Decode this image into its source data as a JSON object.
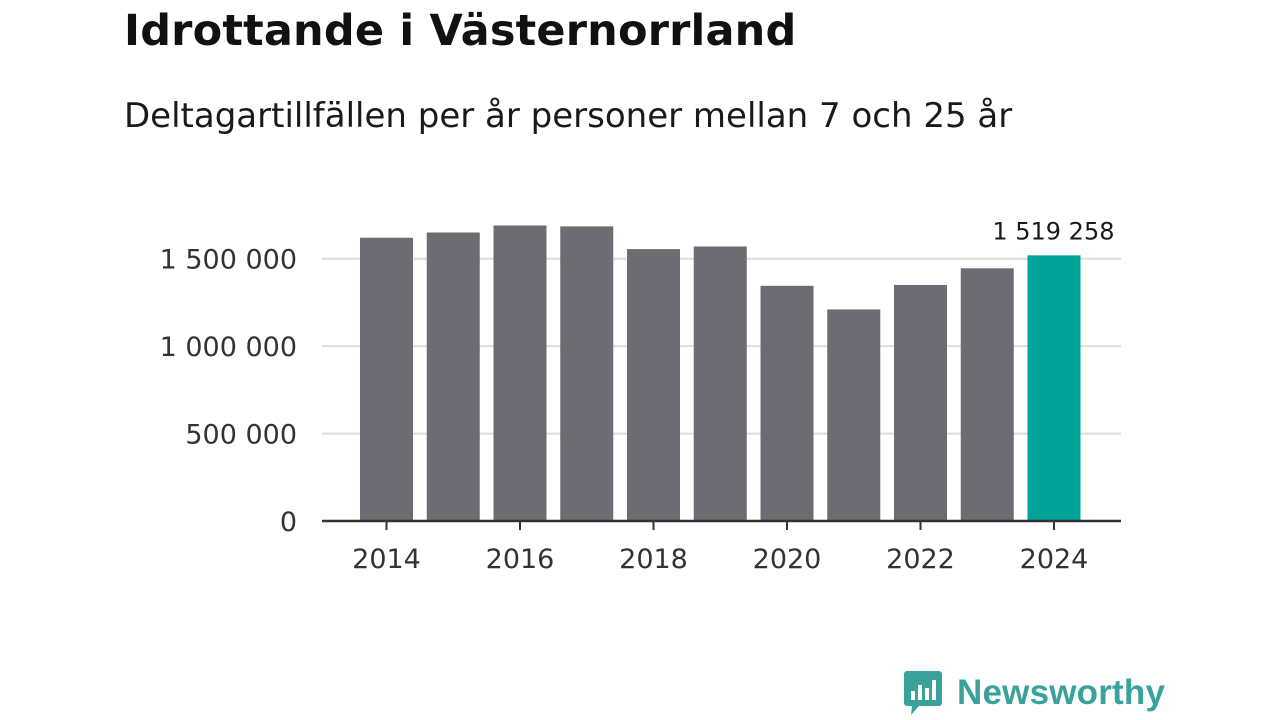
{
  "title": "Idrottande i Västernorrland",
  "subtitle": "Deltagartillfällen per år personer mellan 7 och 25 år",
  "brand": {
    "name": "Newsworthy",
    "icon": "newsworthy-logo-icon",
    "color": "#3aa29a"
  },
  "chart_data": {
    "type": "bar",
    "categories": [
      "2014",
      "2015",
      "2016",
      "2017",
      "2018",
      "2019",
      "2020",
      "2021",
      "2022",
      "2023",
      "2024"
    ],
    "values": [
      1620000,
      1650000,
      1690000,
      1685000,
      1555000,
      1570000,
      1345000,
      1210000,
      1350000,
      1445000,
      1519258
    ],
    "highlight_index": 10,
    "highlight_label": "1 519 258",
    "bar_color": "#6d6c73",
    "highlight_color": "#00a399",
    "ylim": [
      0,
      1750000
    ],
    "yticks": [
      0,
      500000,
      1000000,
      1500000
    ],
    "ytick_labels": [
      "0",
      "500 000",
      "1 000 000",
      "1 500 000"
    ],
    "xtick_labels": [
      "2014",
      "2016",
      "2018",
      "2020",
      "2022",
      "2024"
    ],
    "xtick_indices": [
      0,
      2,
      4,
      6,
      8,
      10
    ],
    "grid": true,
    "xlabel": "",
    "ylabel": ""
  }
}
